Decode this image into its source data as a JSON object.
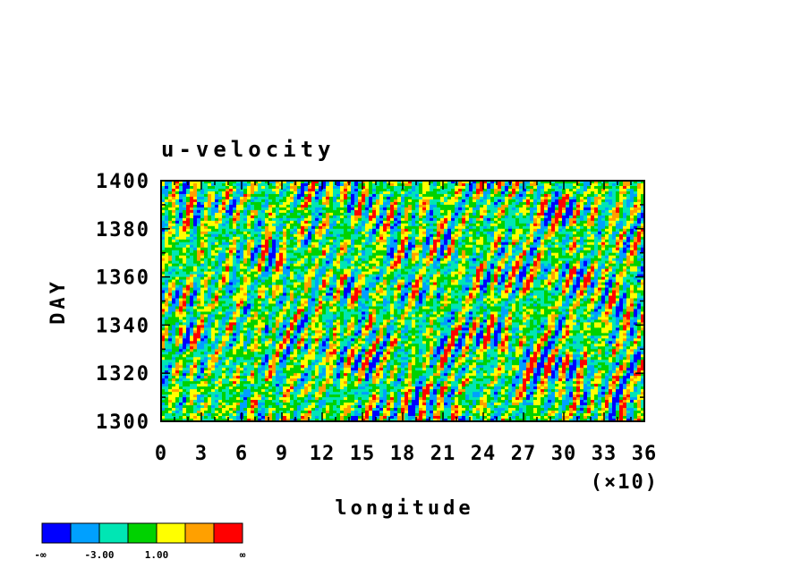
{
  "chart_data": {
    "type": "heatmap",
    "title": "u-velocity",
    "xlabel": "longitude",
    "ylabel": "DAY",
    "x_scale_note": "(×10)",
    "xlim": [
      0,
      36
    ],
    "ylim": [
      1300,
      1400
    ],
    "x_ticks": [
      "0",
      "3",
      "6",
      "9",
      "12",
      "15",
      "18",
      "21",
      "24",
      "27",
      "30",
      "33",
      "36"
    ],
    "y_ticks": [
      "1300",
      "1320",
      "1340",
      "1360",
      "1380",
      "1400"
    ],
    "colorbar": {
      "colors": [
        "#0000ff",
        "#00a0ff",
        "#00e6b4",
        "#00d200",
        "#ffff00",
        "#ffa000",
        "#ff0000"
      ],
      "labels": [
        "-∞",
        "-3.00",
        "1.00",
        "∞"
      ]
    }
  }
}
